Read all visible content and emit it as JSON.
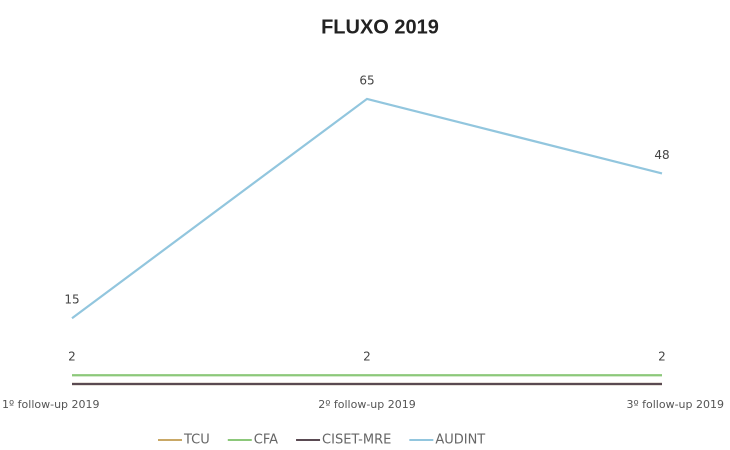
{
  "chart_data": {
    "type": "line",
    "title": "FLUXO 2019",
    "categories": [
      "1º follow-up 2019",
      "2º follow-up 2019",
      "3º follow-up 2019"
    ],
    "series": [
      {
        "name": "TCU",
        "color": "#c9a866",
        "values": [
          0,
          0,
          0
        ]
      },
      {
        "name": "CFA",
        "color": "#8cc87a",
        "values": [
          2,
          2,
          2
        ],
        "data_labels": true
      },
      {
        "name": "CISET-MRE",
        "color": "#5a4a52",
        "values": [
          0,
          0,
          0
        ]
      },
      {
        "name": "AUDINT",
        "color": "#92c6de",
        "values": [
          15,
          65,
          48
        ],
        "data_labels": true
      }
    ],
    "ylim": [
      0,
      70
    ],
    "legend": "bottom"
  }
}
